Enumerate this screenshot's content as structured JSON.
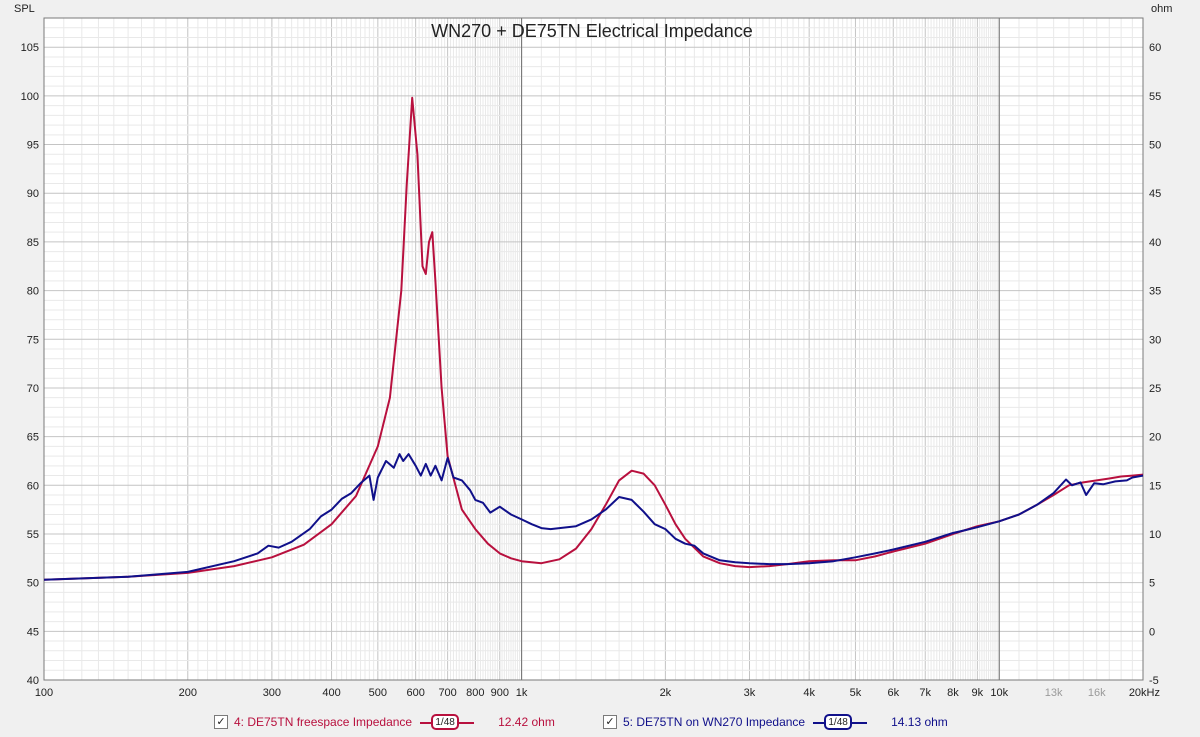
{
  "chart_data": {
    "type": "line",
    "title": "WN270 + DE75TN Electrical Impedance",
    "left_axis_label": "SPL",
    "right_axis_label": "ohm",
    "x_scale": "log",
    "xlim": [
      100,
      20000
    ],
    "ylim_left": [
      40,
      108
    ],
    "ylim_right": [
      -5,
      63
    ],
    "left_ticks": [
      40,
      45,
      50,
      55,
      60,
      65,
      70,
      75,
      80,
      85,
      90,
      95,
      100,
      105
    ],
    "right_ticks": [
      -5,
      0,
      5,
      10,
      15,
      20,
      25,
      30,
      35,
      40,
      45,
      50,
      55,
      60
    ],
    "x_ticks": [
      {
        "v": 100,
        "label": "100"
      },
      {
        "v": 200,
        "label": "200"
      },
      {
        "v": 300,
        "label": "300"
      },
      {
        "v": 400,
        "label": "400"
      },
      {
        "v": 500,
        "label": "500"
      },
      {
        "v": 600,
        "label": "600"
      },
      {
        "v": 700,
        "label": "700"
      },
      {
        "v": 800,
        "label": "800"
      },
      {
        "v": 900,
        "label": "900"
      },
      {
        "v": 1000,
        "label": "1k"
      },
      {
        "v": 2000,
        "label": "2k"
      },
      {
        "v": 3000,
        "label": "3k"
      },
      {
        "v": 4000,
        "label": "4k"
      },
      {
        "v": 5000,
        "label": "5k"
      },
      {
        "v": 6000,
        "label": "6k"
      },
      {
        "v": 7000,
        "label": "7k"
      },
      {
        "v": 8000,
        "label": "8k"
      },
      {
        "v": 9000,
        "label": "9k"
      },
      {
        "v": 10000,
        "label": "10k"
      },
      {
        "v": 13000,
        "label": "13k",
        "muted": true
      },
      {
        "v": 16000,
        "label": "16k",
        "muted": true
      },
      {
        "v": 20000,
        "label": "20kHz"
      }
    ],
    "major_vlines": [
      1000,
      10000
    ],
    "grid": true,
    "series": [
      {
        "name": "4: DE75TN freespace Impedance",
        "color": "#b8103e",
        "smoothing": "1/48",
        "readout": "12.42 ohm",
        "x": [
          100,
          150,
          200,
          250,
          300,
          350,
          400,
          450,
          500,
          530,
          560,
          575,
          590,
          605,
          620,
          630,
          640,
          650,
          660,
          680,
          700,
          750,
          800,
          850,
          900,
          950,
          1000,
          1100,
          1200,
          1300,
          1400,
          1500,
          1600,
          1700,
          1800,
          1900,
          2000,
          2100,
          2200,
          2400,
          2600,
          2800,
          3000,
          3300,
          3600,
          4000,
          4500,
          5000,
          5500,
          6000,
          7000,
          8000,
          9000,
          10000,
          11000,
          12000,
          13000,
          14000,
          15000,
          16000,
          17000,
          18000,
          19000,
          20000
        ],
        "y": [
          50.3,
          50.6,
          51.0,
          51.7,
          52.6,
          53.9,
          56.0,
          58.9,
          64.0,
          69.0,
          80.0,
          91.0,
          99.8,
          94.0,
          82.5,
          81.7,
          85.0,
          86.0,
          81.0,
          70.0,
          63.0,
          57.5,
          55.5,
          54.0,
          53.0,
          52.5,
          52.2,
          52.0,
          52.4,
          53.5,
          55.5,
          58.0,
          60.5,
          61.5,
          61.2,
          60.0,
          58.0,
          56.0,
          54.5,
          52.7,
          52.0,
          51.7,
          51.6,
          51.7,
          51.9,
          52.2,
          52.3,
          52.3,
          52.7,
          53.2,
          54.0,
          55.0,
          55.8,
          56.3,
          57.0,
          58.0,
          59.0,
          60.0,
          60.3,
          60.5,
          60.7,
          60.9,
          61.0,
          61.1
        ]
      },
      {
        "name": "5: DE75TN on WN270 Impedance",
        "color": "#10108a",
        "smoothing": "1/48",
        "readout": "14.13 ohm",
        "x": [
          100,
          150,
          200,
          250,
          280,
          295,
          310,
          330,
          360,
          380,
          400,
          420,
          440,
          460,
          480,
          490,
          500,
          520,
          540,
          555,
          565,
          580,
          600,
          615,
          630,
          645,
          660,
          680,
          700,
          720,
          750,
          780,
          800,
          830,
          860,
          900,
          950,
          1000,
          1050,
          1100,
          1150,
          1200,
          1300,
          1400,
          1500,
          1600,
          1700,
          1800,
          1900,
          2000,
          2100,
          2200,
          2300,
          2400,
          2600,
          2800,
          3000,
          3300,
          3600,
          4000,
          4500,
          5000,
          5500,
          6000,
          7000,
          8000,
          8500,
          9000,
          9500,
          10000,
          11000,
          12000,
          13000,
          13800,
          14200,
          14800,
          15200,
          15800,
          16500,
          17500,
          18500,
          19000,
          20000
        ],
        "y": [
          50.3,
          50.6,
          51.1,
          52.2,
          53.0,
          53.8,
          53.6,
          54.2,
          55.5,
          56.8,
          57.5,
          58.6,
          59.2,
          60.2,
          61.0,
          58.5,
          60.8,
          62.5,
          61.8,
          63.2,
          62.5,
          63.2,
          62.0,
          61.0,
          62.2,
          61.0,
          62.0,
          60.5,
          62.8,
          60.8,
          60.5,
          59.5,
          58.5,
          58.2,
          57.2,
          57.8,
          57.0,
          56.5,
          56.0,
          55.6,
          55.5,
          55.6,
          55.8,
          56.5,
          57.5,
          58.8,
          58.5,
          57.3,
          56.0,
          55.5,
          54.5,
          54.0,
          53.8,
          53.0,
          52.3,
          52.1,
          52.0,
          51.9,
          51.9,
          52.0,
          52.2,
          52.6,
          53.0,
          53.4,
          54.2,
          55.1,
          55.4,
          55.7,
          56.0,
          56.3,
          57.0,
          58.0,
          59.2,
          60.6,
          60.0,
          60.3,
          59.0,
          60.2,
          60.1,
          60.4,
          60.5,
          60.8,
          61.0
        ]
      }
    ]
  },
  "legend": {
    "items": [
      {
        "checkbox": "✓",
        "label": "4: DE75TN freespace Impedance",
        "smoothing": "1/48",
        "value": "12.42 ohm",
        "color": "#b8103e"
      },
      {
        "checkbox": "✓",
        "label": "5: DE75TN on WN270 Impedance",
        "smoothing": "1/48",
        "value": "14.13 ohm",
        "color": "#10108a"
      }
    ]
  }
}
